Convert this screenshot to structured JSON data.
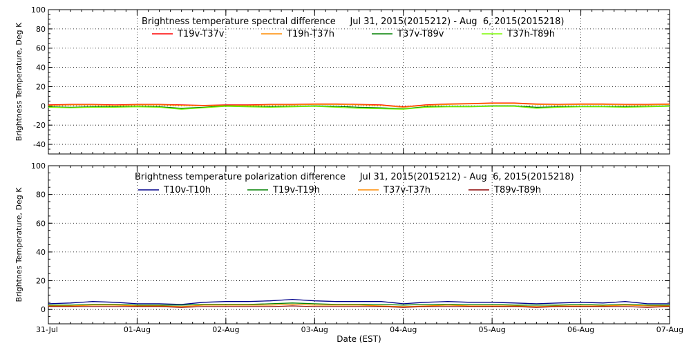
{
  "colors": {
    "background": "#ffffff",
    "axis": "#000000",
    "grid": "#000000"
  },
  "x_axis": {
    "label": "Date (EST)",
    "range_hours": [
      0,
      168
    ],
    "ticks": [
      {
        "hour": 0,
        "label": "31-Jul"
      },
      {
        "hour": 24,
        "label": "01-Aug"
      },
      {
        "hour": 48,
        "label": "02-Aug"
      },
      {
        "hour": 72,
        "label": "03-Aug"
      },
      {
        "hour": 96,
        "label": "04-Aug"
      },
      {
        "hour": 120,
        "label": "05-Aug"
      },
      {
        "hour": 144,
        "label": "06-Aug"
      },
      {
        "hour": 168,
        "label": "07-Aug"
      }
    ]
  },
  "chart_data": [
    {
      "type": "line",
      "title": "Brightness temperature spectral difference",
      "date_range": "Jul 31, 2015(2015212) - Aug  6, 2015(2015218)",
      "xlabel": "",
      "ylabel": "Brightness Temperature, Deg K",
      "ylim": [
        -50,
        100
      ],
      "yticks": [
        -40,
        -20,
        0,
        20,
        40,
        60,
        80,
        100
      ],
      "grid": true,
      "legend_position": "top",
      "series": [
        {
          "name": "T19v-T37v",
          "color": "#ff0000",
          "x": [
            0,
            6,
            12,
            18,
            24,
            30,
            36,
            42,
            48,
            54,
            60,
            66,
            72,
            78,
            84,
            90,
            96,
            102,
            108,
            114,
            120,
            126,
            132,
            138,
            144,
            150,
            156,
            162,
            168
          ],
          "values": [
            1,
            1.5,
            1.5,
            1,
            1.5,
            1.5,
            1,
            0.5,
            1,
            1,
            1.5,
            1.5,
            2,
            2,
            1.5,
            1,
            -1,
            1,
            2,
            2.5,
            3,
            3,
            2,
            1.5,
            2,
            2,
            1.5,
            1.5,
            2
          ]
        },
        {
          "name": "T19h-T37h",
          "color": "#ff8c00",
          "x": [
            0,
            6,
            12,
            18,
            24,
            30,
            36,
            42,
            48,
            54,
            60,
            66,
            72,
            78,
            84,
            90,
            96,
            102,
            108,
            114,
            120,
            126,
            132,
            138,
            144,
            150,
            156,
            162,
            168
          ],
          "values": [
            0.5,
            1,
            1,
            0.5,
            1,
            1,
            0.5,
            0,
            0.5,
            0.5,
            1,
            1,
            1.5,
            1.5,
            1,
            0.5,
            -1.5,
            0.5,
            1.5,
            2,
            2.5,
            2.5,
            1.5,
            1,
            1.5,
            1.5,
            1,
            1,
            1.5
          ]
        },
        {
          "name": "T37v-T89v",
          "color": "#008000",
          "x": [
            0,
            6,
            12,
            18,
            24,
            30,
            36,
            42,
            48,
            54,
            60,
            66,
            72,
            78,
            84,
            90,
            96,
            102,
            108,
            114,
            120,
            126,
            132,
            138,
            144,
            150,
            156,
            162,
            168
          ],
          "values": [
            -1,
            -1.5,
            -1,
            -1,
            -0.5,
            -1,
            -2.5,
            -1.5,
            0,
            -0.5,
            -1,
            -0.5,
            0,
            -0.5,
            -1.5,
            -2,
            -3,
            -1,
            -0.5,
            -0.5,
            0,
            0,
            -1.5,
            -1,
            -0.5,
            -0.5,
            -1,
            -0.5,
            0
          ]
        },
        {
          "name": "T37h-T89h",
          "color": "#7cfc00",
          "x": [
            0,
            6,
            12,
            18,
            24,
            30,
            36,
            42,
            48,
            54,
            60,
            66,
            72,
            78,
            84,
            90,
            96,
            102,
            108,
            114,
            120,
            126,
            132,
            138,
            144,
            150,
            156,
            162,
            168
          ],
          "values": [
            -1.5,
            -2,
            -1.5,
            -1.5,
            -1,
            -1.5,
            -3.5,
            -2,
            -0.5,
            -1,
            -1.5,
            -1,
            -0.5,
            -1.5,
            -2.5,
            -3,
            -3.5,
            -1.5,
            -1,
            -1,
            -0.5,
            -0.5,
            -2.5,
            -1.5,
            -1,
            -1,
            -1.5,
            -1,
            -0.5
          ]
        }
      ]
    },
    {
      "type": "line",
      "title": "Brightness temperature polarization difference",
      "date_range": "Jul 31, 2015(2015212) - Aug  6, 2015(2015218)",
      "xlabel": "Date (EST)",
      "ylabel": "Brightnes Temperature, Deg K",
      "ylim": [
        -10,
        100
      ],
      "yticks": [
        0,
        20,
        40,
        60,
        80,
        100
      ],
      "grid": true,
      "legend_position": "top",
      "series": [
        {
          "name": "T10v-T10h",
          "color": "#00008b",
          "x": [
            0,
            6,
            12,
            18,
            24,
            30,
            36,
            42,
            48,
            54,
            60,
            66,
            72,
            78,
            84,
            90,
            96,
            102,
            108,
            114,
            120,
            126,
            132,
            138,
            144,
            150,
            156,
            162,
            168
          ],
          "values": [
            4,
            4.5,
            5.5,
            5,
            4,
            4,
            3.5,
            5,
            5.5,
            5.5,
            6,
            7,
            6,
            5.5,
            5.5,
            5.5,
            4,
            5,
            5.5,
            5,
            5,
            4.5,
            4,
            4.5,
            5,
            4.5,
            5.5,
            4,
            4
          ]
        },
        {
          "name": "T19v-T19h",
          "color": "#008000",
          "x": [
            0,
            6,
            12,
            18,
            24,
            30,
            36,
            42,
            48,
            54,
            60,
            66,
            72,
            78,
            84,
            90,
            96,
            102,
            108,
            114,
            120,
            126,
            132,
            138,
            144,
            150,
            156,
            162,
            168
          ],
          "values": [
            3,
            3,
            3.5,
            3.5,
            3,
            3,
            3,
            3.5,
            3.5,
            3.5,
            4,
            4.5,
            4,
            3.5,
            3.5,
            3.5,
            3,
            3.5,
            3.5,
            3.5,
            3.5,
            3,
            3,
            3,
            3.5,
            3,
            3.5,
            3,
            3
          ]
        },
        {
          "name": "T37v-T37h",
          "color": "#ff8c00",
          "x": [
            0,
            6,
            12,
            18,
            24,
            30,
            36,
            42,
            48,
            54,
            60,
            66,
            72,
            78,
            84,
            90,
            96,
            102,
            108,
            114,
            120,
            126,
            132,
            138,
            144,
            150,
            156,
            162,
            168
          ],
          "values": [
            2.5,
            2.5,
            3,
            3,
            2.5,
            2.5,
            2,
            3,
            3,
            3,
            3,
            3.5,
            3,
            3,
            3,
            2.5,
            2,
            2.5,
            3,
            2.5,
            2.5,
            2.5,
            2,
            2.5,
            2.5,
            2.5,
            3,
            2.5,
            2.5
          ]
        },
        {
          "name": "T89v-T89h",
          "color": "#8b0000",
          "x": [
            0,
            6,
            12,
            18,
            24,
            30,
            36,
            42,
            48,
            54,
            60,
            66,
            72,
            78,
            84,
            90,
            96,
            102,
            108,
            114,
            120,
            126,
            132,
            138,
            144,
            150,
            156,
            162,
            168
          ],
          "values": [
            2,
            2,
            2,
            2,
            2,
            2,
            1.5,
            2,
            2,
            2,
            2,
            2.5,
            2,
            2,
            2,
            2,
            1.5,
            2,
            2,
            2,
            2,
            2,
            1.5,
            2,
            2,
            2,
            2,
            1.5,
            2
          ]
        }
      ]
    }
  ]
}
